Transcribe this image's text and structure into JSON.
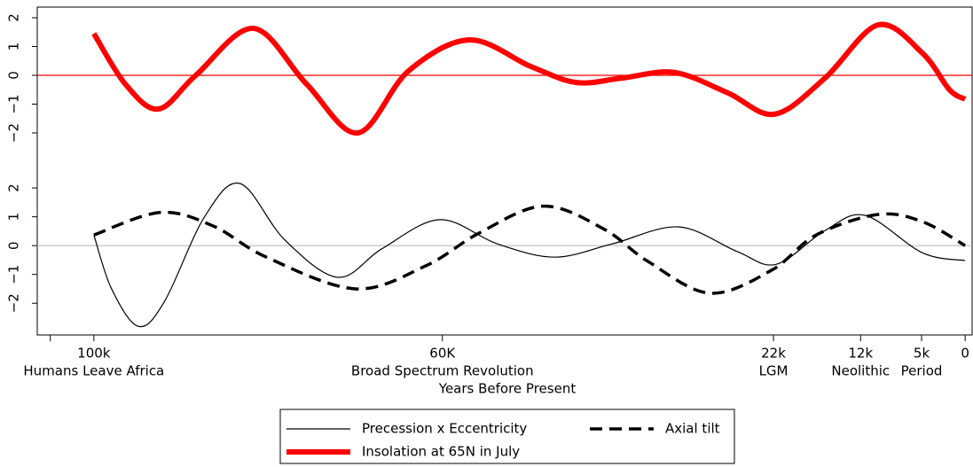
{
  "chart_data": [
    {
      "type": "line",
      "xlim": [
        106500,
        -800
      ],
      "ylim": [
        -2.8,
        2.37
      ],
      "yticks": [
        {
          "value": -2,
          "label": "−2"
        },
        {
          "value": -1,
          "label": "−1"
        },
        0,
        1,
        2
      ],
      "hline": {
        "value": 0,
        "color": "#ff0000"
      },
      "series": [
        {
          "name": "Insolation at 65N in July",
          "color": "#ff0000",
          "width": 6,
          "dash": "none",
          "x": [
            100000,
            96400,
            92600,
            88300,
            81700,
            75600,
            69700,
            63900,
            56900,
            49800,
            44600,
            39500,
            33400,
            27300,
            21900,
            16100,
            10000,
            4900,
            1800,
            0
          ],
          "values": [
            1.45,
            -0.3,
            -1.17,
            0,
            1.63,
            -0.3,
            -2.0,
            0.15,
            1.23,
            0.3,
            -0.25,
            -0.1,
            0.1,
            -0.6,
            -1.35,
            -0.1,
            1.75,
            0.77,
            -0.5,
            -0.83
          ]
        }
      ]
    },
    {
      "type": "line",
      "xlim": [
        106500,
        -800
      ],
      "ylim": [
        -3.1,
        2.68
      ],
      "yticks": [
        {
          "value": -2,
          "label": "−2"
        },
        {
          "value": -1,
          "label": "−1"
        },
        0,
        1,
        2
      ],
      "hline": {
        "value": 0,
        "color": "#bbbbbb"
      },
      "xlabel": "Years Before Present",
      "xticks": [
        {
          "value": 105000,
          "label": null
        },
        {
          "value": 100000,
          "label": "100k",
          "note": "Humans Leave Africa"
        },
        {
          "value": 60000,
          "label": "60K",
          "note": "Broad Spectrum Revolution"
        },
        {
          "value": 22000,
          "label": "22k",
          "note": "LGM"
        },
        {
          "value": 12000,
          "label": "12k",
          "note": "Neolithic"
        },
        {
          "value": 5000,
          "label": "5k",
          "note": "Period"
        },
        {
          "value": 0,
          "label": "0"
        }
      ],
      "series": [
        {
          "name": "Precession x Eccentricity",
          "color": "#000000",
          "width": 1.2,
          "dash": "none",
          "x": [
            100000,
            98000,
            94900,
            91900,
            87300,
            83200,
            78100,
            72000,
            66900,
            60300,
            53700,
            47100,
            40500,
            32900,
            26200,
            21700,
            16100,
            11500,
            4900,
            0
          ],
          "values": [
            0.37,
            -1.48,
            -2.8,
            -1.94,
            1.0,
            2.15,
            0.2,
            -1.1,
            -0.1,
            0.9,
            0.06,
            -0.4,
            0.06,
            0.65,
            -0.2,
            -0.65,
            0.52,
            1.05,
            -0.25,
            -0.52
          ]
        },
        {
          "name": "Axial tilt",
          "color": "#000000",
          "width": 3.5,
          "dash": "14 8",
          "x": [
            100000,
            92400,
            86300,
            80200,
            70000,
            61900,
            55700,
            48400,
            41500,
            36400,
            29300,
            22200,
            17100,
            10000,
            4900,
            0
          ],
          "values": [
            0.37,
            1.15,
            0.68,
            -0.4,
            -1.5,
            -0.7,
            0.45,
            1.37,
            0.58,
            -0.55,
            -1.65,
            -0.85,
            0.37,
            1.08,
            0.83,
            0
          ]
        }
      ]
    }
  ]
}
